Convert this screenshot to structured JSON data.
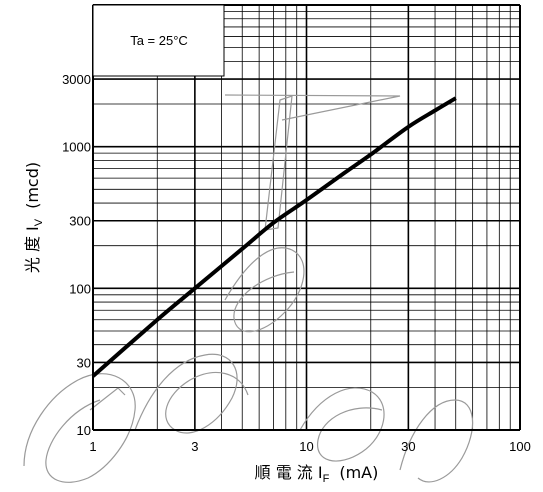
{
  "chart_data": {
    "type": "line",
    "x_scale": "log",
    "y_scale": "log",
    "xlim": [
      1,
      100
    ],
    "ylim": [
      10,
      10000
    ],
    "x_ticks": [
      {
        "value": 1,
        "label": "1"
      },
      {
        "value": 3,
        "label": "3"
      },
      {
        "value": 10,
        "label": "10"
      },
      {
        "value": 30,
        "label": "30"
      },
      {
        "value": 100,
        "label": "100"
      }
    ],
    "y_ticks": [
      {
        "value": 10,
        "label": "10"
      },
      {
        "value": 30,
        "label": "30"
      },
      {
        "value": 100,
        "label": "100"
      },
      {
        "value": 300,
        "label": "300"
      },
      {
        "value": 1000,
        "label": "1000"
      },
      {
        "value": 3000,
        "label": "3000"
      }
    ],
    "xlabel": {
      "main": "順 電 流 I",
      "sub": "F",
      "unit": "(mA)"
    },
    "ylabel": {
      "main": "光 度 I",
      "sub": "V",
      "unit": "(mcd)"
    },
    "annotation": "Ta = 25°C",
    "grid": true,
    "series": [
      {
        "x": [
          1,
          2,
          3,
          5,
          7,
          10,
          15,
          20,
          30,
          40,
          50
        ],
        "y": [
          24,
          60,
          100,
          190,
          290,
          420,
          650,
          880,
          1380,
          1800,
          2200
        ]
      }
    ]
  },
  "watermark": "Excelled"
}
